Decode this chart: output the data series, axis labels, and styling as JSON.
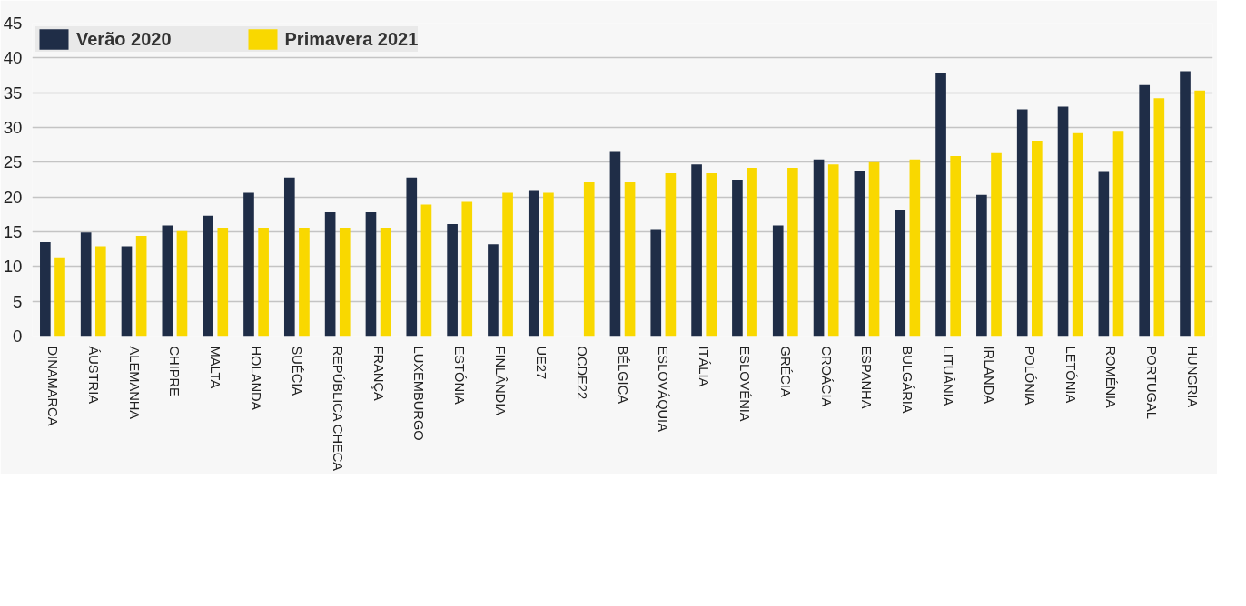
{
  "chart_data": {
    "type": "bar",
    "categories": [
      "DINAMARCA",
      "ÁUSTRIA",
      "ALEMANHA",
      "CHIPRE",
      "MALTA",
      "HOLANDA",
      "SUÉCIA",
      "REPÚBLICA CHECA",
      "FRANÇA",
      "LUXEMBURGO",
      "ESTÓNIA",
      "FINLÂNDIA",
      "UE27",
      "OCDE22",
      "BÉLGICA",
      "ESLOVÁQUIA",
      "ITÁLIA",
      "ESLOVÉNIA",
      "GRÉCIA",
      "CROÁCIA",
      "ESPANHA",
      "BULGÁRIA",
      "LITUÂNIA",
      "IRLANDA",
      "POLÓNIA",
      "LETÓNIA",
      "ROMÉNIA",
      "PORTUGAL",
      "HUNGRIA"
    ],
    "series": [
      {
        "name": "Verão 2020",
        "color": "#1f2d47",
        "values": [
          13.5,
          14.9,
          12.9,
          15.9,
          17.3,
          20.6,
          22.8,
          17.8,
          17.8,
          22.8,
          16.1,
          13.2,
          21.0,
          null,
          26.6,
          15.4,
          24.7,
          22.5,
          15.9,
          25.4,
          23.8,
          18.1,
          37.9,
          20.3,
          32.6,
          33.0,
          23.6,
          36.1,
          38.1
        ]
      },
      {
        "name": "Primavera 2021",
        "color": "#f9d800",
        "values": [
          11.3,
          12.9,
          14.4,
          15.1,
          15.6,
          15.6,
          15.6,
          15.6,
          15.6,
          18.9,
          19.3,
          20.6,
          20.6,
          22.1,
          22.1,
          23.4,
          23.4,
          24.2,
          24.2,
          24.7,
          25.0,
          25.4,
          25.9,
          26.3,
          28.1,
          29.2,
          29.5,
          34.2,
          35.3
        ]
      }
    ],
    "ylim": [
      0,
      45
    ],
    "yticks": [
      0,
      5,
      10,
      15,
      20,
      25,
      30,
      35,
      40,
      45
    ],
    "grid": "y",
    "legend": "top left"
  }
}
